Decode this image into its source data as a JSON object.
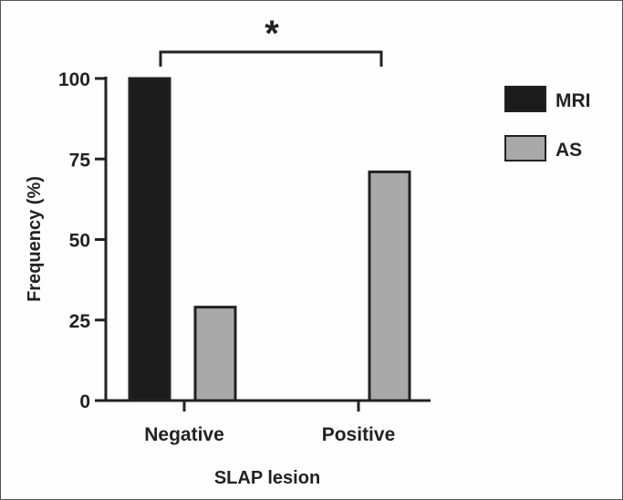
{
  "chart_data": {
    "type": "bar",
    "categories": [
      "Negative",
      "Positive"
    ],
    "series": [
      {
        "name": "MRI",
        "values": [
          100,
          0
        ],
        "color": "#1c1c1c"
      },
      {
        "name": "AS",
        "values": [
          29,
          71
        ],
        "color": "#a9a9a9"
      }
    ],
    "ylabel": "Frequency (%)",
    "xlabel": "SLAP lesion",
    "ylim": [
      0,
      100
    ],
    "yticks": [
      0,
      25,
      50,
      75,
      100
    ],
    "significance": {
      "label": "*",
      "between_categories": [
        "Negative",
        "Positive"
      ]
    },
    "legend": "right",
    "grid": false
  }
}
